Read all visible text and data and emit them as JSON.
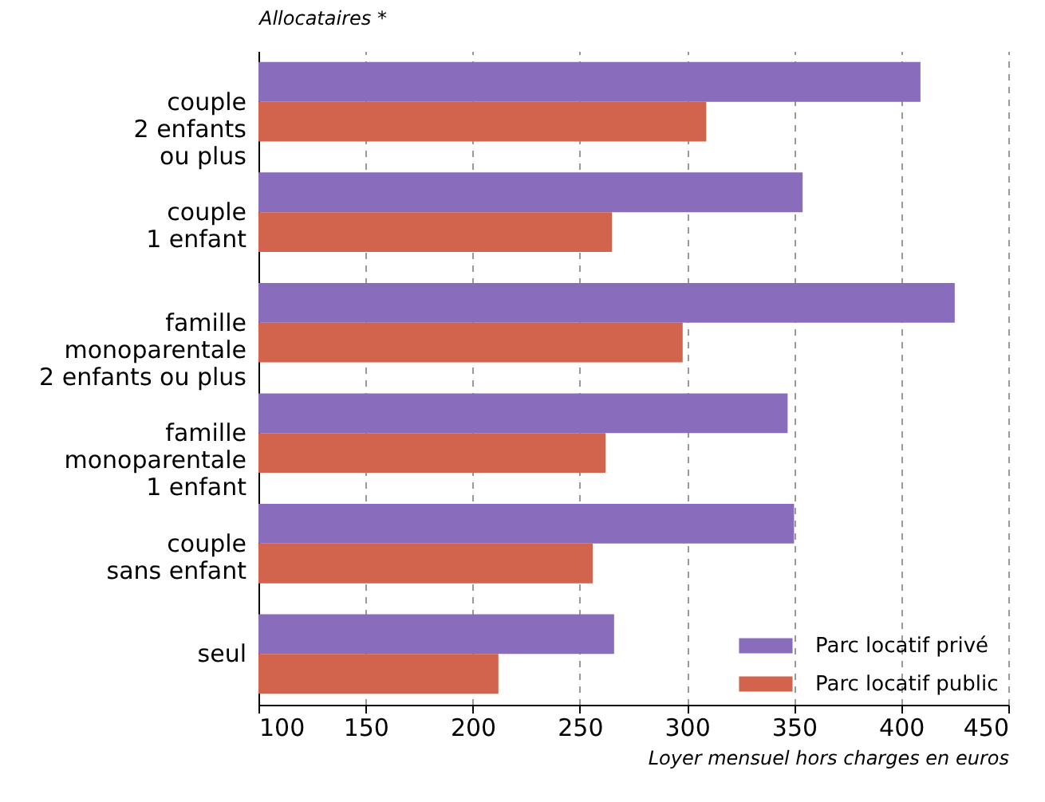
{
  "chart_data": {
    "type": "bar",
    "orientation": "horizontal",
    "ylabel": "Allocataires *",
    "xlabel": "Loyer mensuel hors charges en euros",
    "categories": [
      "couple\n2 enfants\nou plus",
      "couple\n1 enfant",
      "famille\nmonoparentale\n2 enfants ou plus",
      "famille\nmonoparentale\n1 enfant",
      "couple\nsans enfant",
      "seul"
    ],
    "series": [
      {
        "name": "Parc locatif privé",
        "color": "#8a6cbc",
        "values": [
          409,
          354,
          425,
          347,
          350,
          266
        ]
      },
      {
        "name": "Parc locatif public",
        "color": "#d2634c",
        "values": [
          309,
          265,
          298,
          262,
          256,
          212
        ]
      }
    ],
    "xlim": [
      100,
      450
    ],
    "xticks": [
      100,
      150,
      200,
      250,
      300,
      350,
      400,
      450
    ],
    "grid": "x",
    "legend": "bottom right"
  }
}
